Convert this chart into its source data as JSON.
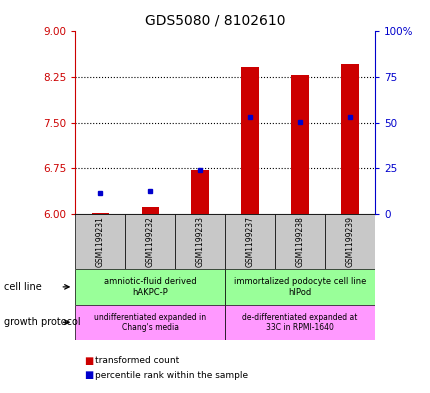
{
  "title": "GDS5080 / 8102610",
  "samples": [
    "GSM1199231",
    "GSM1199232",
    "GSM1199233",
    "GSM1199237",
    "GSM1199238",
    "GSM1199239"
  ],
  "red_values": [
    6.02,
    6.12,
    6.72,
    8.42,
    8.28,
    8.47
  ],
  "blue_values": [
    6.35,
    6.38,
    6.72,
    7.6,
    7.51,
    7.6
  ],
  "ylim_left": [
    6,
    9
  ],
  "ylim_right": [
    0,
    100
  ],
  "yticks_left": [
    6,
    6.75,
    7.5,
    8.25,
    9
  ],
  "yticks_right": [
    0,
    25,
    50,
    75,
    100
  ],
  "cell_line_labels": [
    "amniotic-fluid derived\nhAKPC-P",
    "immortalized podocyte cell line\nhIPod"
  ],
  "growth_protocol_labels": [
    "undifferentiated expanded in\nChang's media",
    "de-differentiated expanded at\n33C in RPMI-1640"
  ],
  "bar_color": "#cc0000",
  "dot_color": "#0000cc",
  "tick_color_left": "#cc0000",
  "tick_color_right": "#0000cc",
  "legend_red_label": "transformed count",
  "legend_blue_label": "percentile rank within the sample",
  "cell_line_text": "cell line",
  "growth_protocol_text": "growth protocol",
  "cell_line_color": "#99ff99",
  "growth_protocol_color": "#ff99ff",
  "sample_box_color": "#c8c8c8",
  "bar_width": 0.35,
  "title_fontsize": 10,
  "tick_fontsize": 7.5,
  "sample_fontsize": 5.5,
  "label_fontsize": 7,
  "cell_fontsize": 6,
  "growth_fontsize": 5.5,
  "legend_fontsize": 6.5
}
